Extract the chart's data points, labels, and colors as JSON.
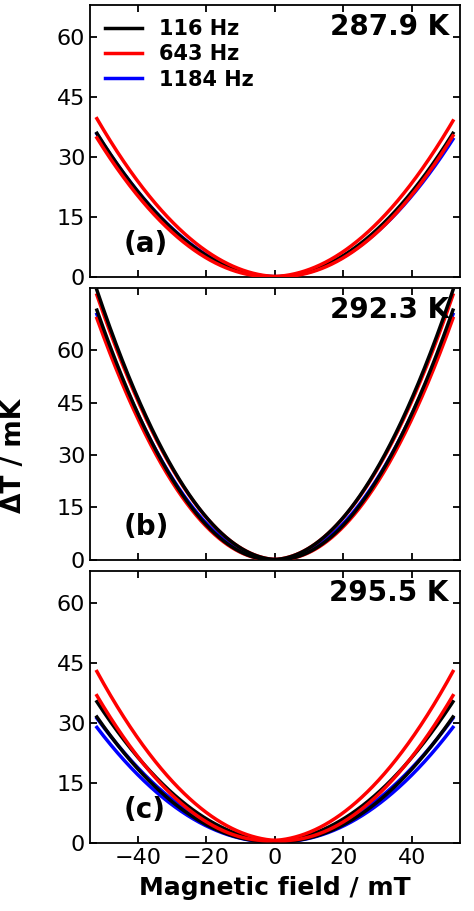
{
  "panels": [
    {
      "label": "(a)",
      "temp_label": "287.9 K",
      "ylim": [
        0,
        68
      ],
      "yticks": [
        0,
        15,
        30,
        45,
        60
      ],
      "show_legend": true
    },
    {
      "label": "(b)",
      "temp_label": "292.3 K",
      "ylim": [
        0,
        78
      ],
      "yticks": [
        0,
        15,
        30,
        45,
        60
      ],
      "show_legend": false
    },
    {
      "label": "(c)",
      "temp_label": "295.5 K",
      "ylim": [
        0,
        68
      ],
      "yticks": [
        0,
        15,
        30,
        45,
        60
      ],
      "show_legend": false
    }
  ],
  "xlabel": "Magnetic field / mT",
  "ylabel": "ΔT / mK",
  "xlim": [
    -54,
    54
  ],
  "xticks": [
    -40,
    -20,
    0,
    20,
    40
  ],
  "legend_labels": [
    "116 Hz",
    "643 Hz",
    "1184 Hz"
  ],
  "legend_colors": [
    "black",
    "red",
    "blue"
  ],
  "line_width": 2.5,
  "background_color": "white",
  "tick_fontsize": 16,
  "label_fontsize": 18,
  "legend_fontsize": 15,
  "annot_fontsize": 20
}
